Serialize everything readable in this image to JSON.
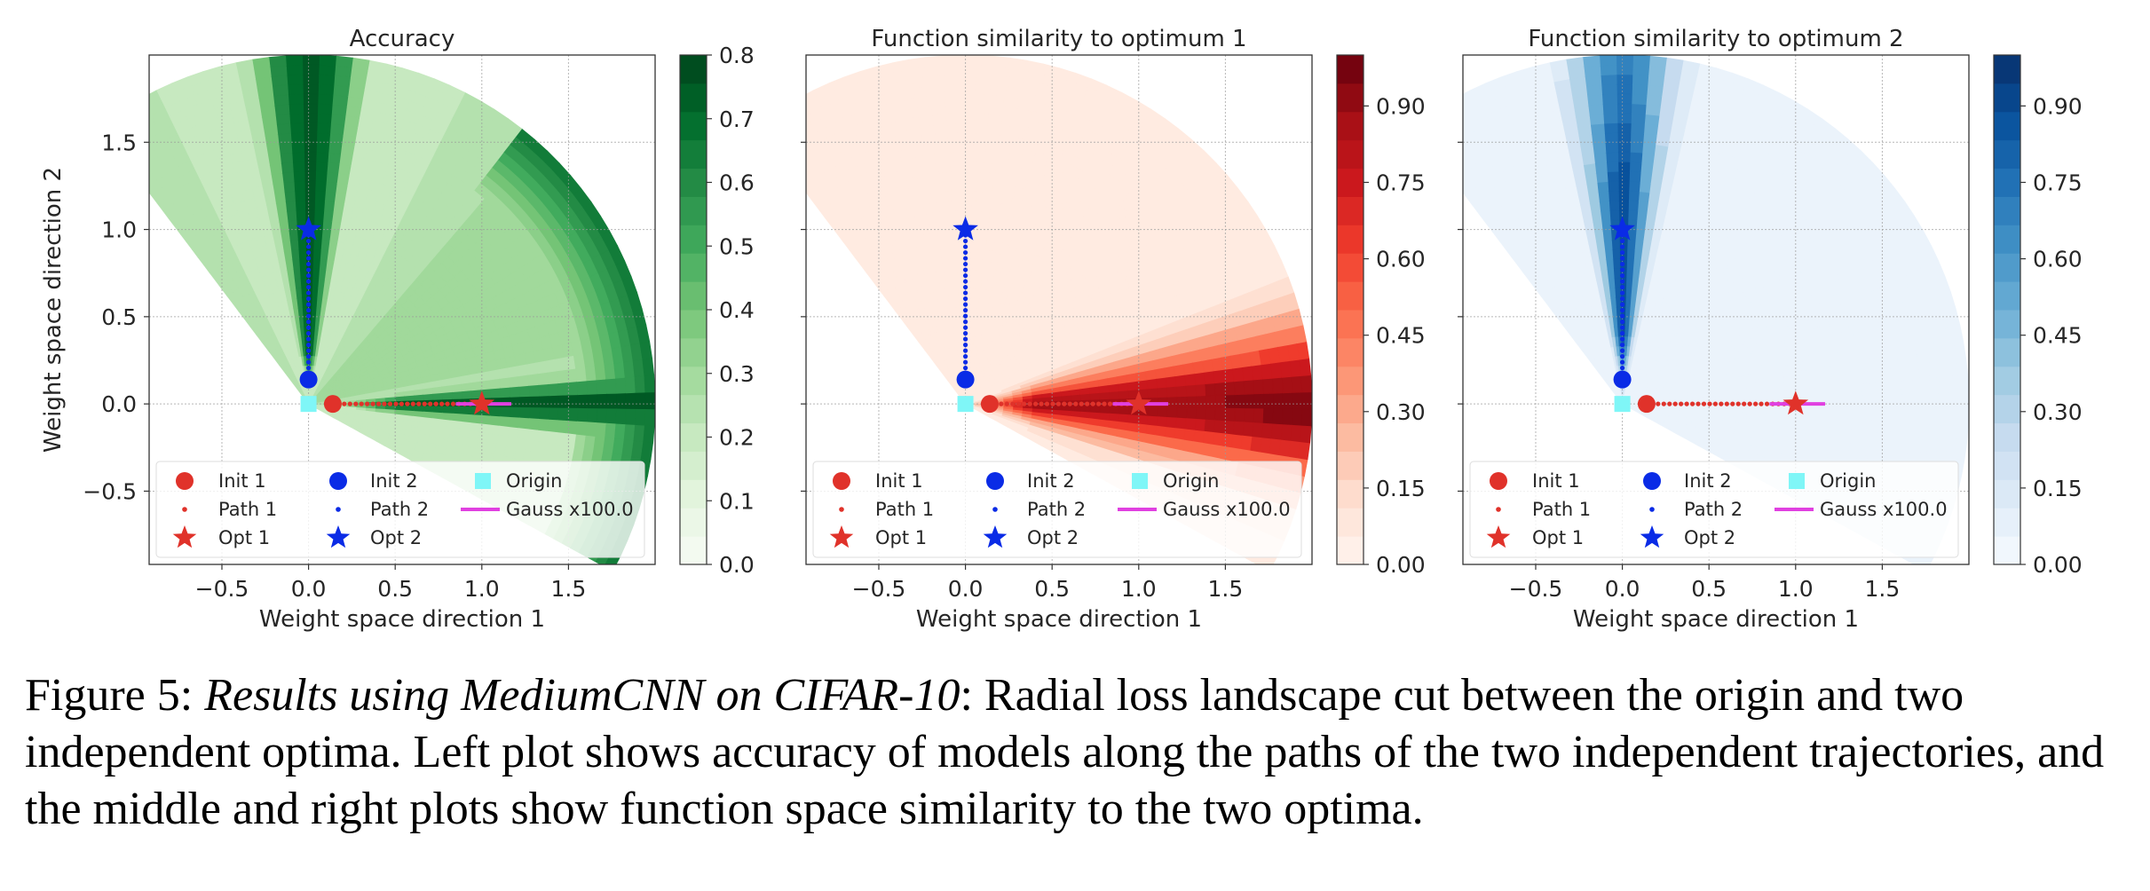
{
  "caption": {
    "label": "Figure 5:",
    "title": "Results using MediumCNN on CIFAR-10",
    "body": ": Radial loss landscape cut between the origin and two independent optima. Left plot shows accuracy of models along the paths of the two independent trajectories, and the middle and right plots show function space similarity to the two optima."
  },
  "colors": {
    "init1": "#e0322a",
    "init2": "#0a2be6",
    "origin": "#7ff6f7",
    "gauss": "#e040e0",
    "greens": [
      "#f7fcf5",
      "#e5f5e0",
      "#c7e9c0",
      "#a1d99b",
      "#74c476",
      "#41ab5d",
      "#238b45",
      "#006d2c",
      "#00441b"
    ],
    "reds": [
      "#fff5f0",
      "#fee0d2",
      "#fcbba1",
      "#fc9272",
      "#fb6a4a",
      "#ef3b2c",
      "#cb181d",
      "#a50f15",
      "#67000d"
    ],
    "blues": [
      "#f7fbff",
      "#deebf7",
      "#c6dbef",
      "#9ecae1",
      "#6baed6",
      "#4292c6",
      "#2171b5",
      "#08519c",
      "#08306b"
    ]
  },
  "chart_data": [
    {
      "type": "heatmap",
      "title": "Accuracy",
      "xlabel": "Weight space direction 1",
      "ylabel": "Weight space direction 2",
      "xlim": [
        -0.92,
        2.0
      ],
      "ylim": [
        -0.92,
        2.0
      ],
      "xticks": [
        -0.5,
        0.0,
        0.5,
        1.0,
        1.5
      ],
      "xtick_labels": [
        "−0.5",
        "0.0",
        "0.5",
        "1.0",
        "1.5"
      ],
      "yticks": [
        -0.5,
        0.0,
        0.5,
        1.0,
        1.5
      ],
      "ytick_labels": [
        "−0.5",
        "0.0",
        "0.5",
        "1.0",
        "1.5"
      ],
      "colormap": "greens",
      "colorbar": {
        "min": 0.0,
        "max": 0.8,
        "ticks": [
          0.0,
          0.1,
          0.2,
          0.3,
          0.4,
          0.5,
          0.6,
          0.7,
          0.8
        ],
        "labels": [
          "0.0",
          "0.1",
          "0.2",
          "0.3",
          "0.4",
          "0.5",
          "0.6",
          "0.7",
          "0.8"
        ]
      },
      "points": {
        "init1": [
          0.14,
          0.0
        ],
        "init2": [
          0.0,
          0.14
        ],
        "origin": [
          0.0,
          0.0
        ],
        "opt1": [
          1.0,
          0.0
        ],
        "opt2": [
          0.0,
          1.0
        ],
        "gauss_x": [
          0.85,
          1.17
        ],
        "gauss_y": 0.0
      },
      "legend": {
        "position": "lower-left",
        "entries": [
          "Init 1",
          "Init 2",
          "Origin",
          "Path 1",
          "Path 2",
          "Gauss x100.0",
          "Opt 1",
          "Opt 2"
        ]
      },
      "grid": true
    },
    {
      "type": "heatmap",
      "title": "Function similarity to optimum 1",
      "xlabel": "Weight space direction 1",
      "ylabel": "",
      "xlim": [
        -0.92,
        2.0
      ],
      "ylim": [
        -0.92,
        2.0
      ],
      "xticks": [
        -0.5,
        0.0,
        0.5,
        1.0,
        1.5
      ],
      "xtick_labels": [
        "−0.5",
        "0.0",
        "0.5",
        "1.0",
        "1.5"
      ],
      "yticks": [
        -0.5,
        0.0,
        0.5,
        1.0,
        1.5
      ],
      "ytick_labels": [],
      "colormap": "reds",
      "colorbar": {
        "min": 0.0,
        "max": 1.0,
        "ticks": [
          0.0,
          0.15,
          0.3,
          0.45,
          0.6,
          0.75,
          0.9
        ],
        "labels": [
          "0.00",
          "0.15",
          "0.30",
          "0.45",
          "0.60",
          "0.75",
          "0.90"
        ]
      },
      "points": {
        "init1": [
          0.14,
          0.0
        ],
        "init2": [
          0.0,
          0.14
        ],
        "origin": [
          0.0,
          0.0
        ],
        "opt1": [
          1.0,
          0.0
        ],
        "opt2": [
          0.0,
          1.0
        ],
        "gauss_x": [
          0.85,
          1.17
        ],
        "gauss_y": 0.0
      },
      "legend": {
        "position": "lower-left",
        "entries": [
          "Init 1",
          "Init 2",
          "Origin",
          "Path 1",
          "Path 2",
          "Gauss x100.0",
          "Opt 1",
          "Opt 2"
        ]
      },
      "grid": true
    },
    {
      "type": "heatmap",
      "title": "Function similarity to optimum 2",
      "xlabel": "Weight space direction 1",
      "ylabel": "",
      "xlim": [
        -0.92,
        2.0
      ],
      "ylim": [
        -0.92,
        2.0
      ],
      "xticks": [
        -0.5,
        0.0,
        0.5,
        1.0,
        1.5
      ],
      "xtick_labels": [
        "−0.5",
        "0.0",
        "0.5",
        "1.0",
        "1.5"
      ],
      "yticks": [
        -0.5,
        0.0,
        0.5,
        1.0,
        1.5
      ],
      "ytick_labels": [],
      "colormap": "blues",
      "colorbar": {
        "min": 0.0,
        "max": 1.0,
        "ticks": [
          0.0,
          0.15,
          0.3,
          0.45,
          0.6,
          0.75,
          0.9
        ],
        "labels": [
          "0.00",
          "0.15",
          "0.30",
          "0.45",
          "0.60",
          "0.75",
          "0.90"
        ]
      },
      "points": {
        "init1": [
          0.14,
          0.0
        ],
        "init2": [
          0.0,
          0.14
        ],
        "origin": [
          0.0,
          0.0
        ],
        "opt1": [
          1.0,
          0.0
        ],
        "opt2": [
          0.0,
          1.0
        ],
        "gauss_x": [
          0.85,
          1.17
        ],
        "gauss_y": 0.0
      },
      "legend": {
        "position": "lower-left",
        "entries": [
          "Init 1",
          "Init 2",
          "Origin",
          "Path 1",
          "Path 2",
          "Gauss x100.0",
          "Opt 1",
          "Opt 2"
        ]
      },
      "grid": true
    }
  ]
}
